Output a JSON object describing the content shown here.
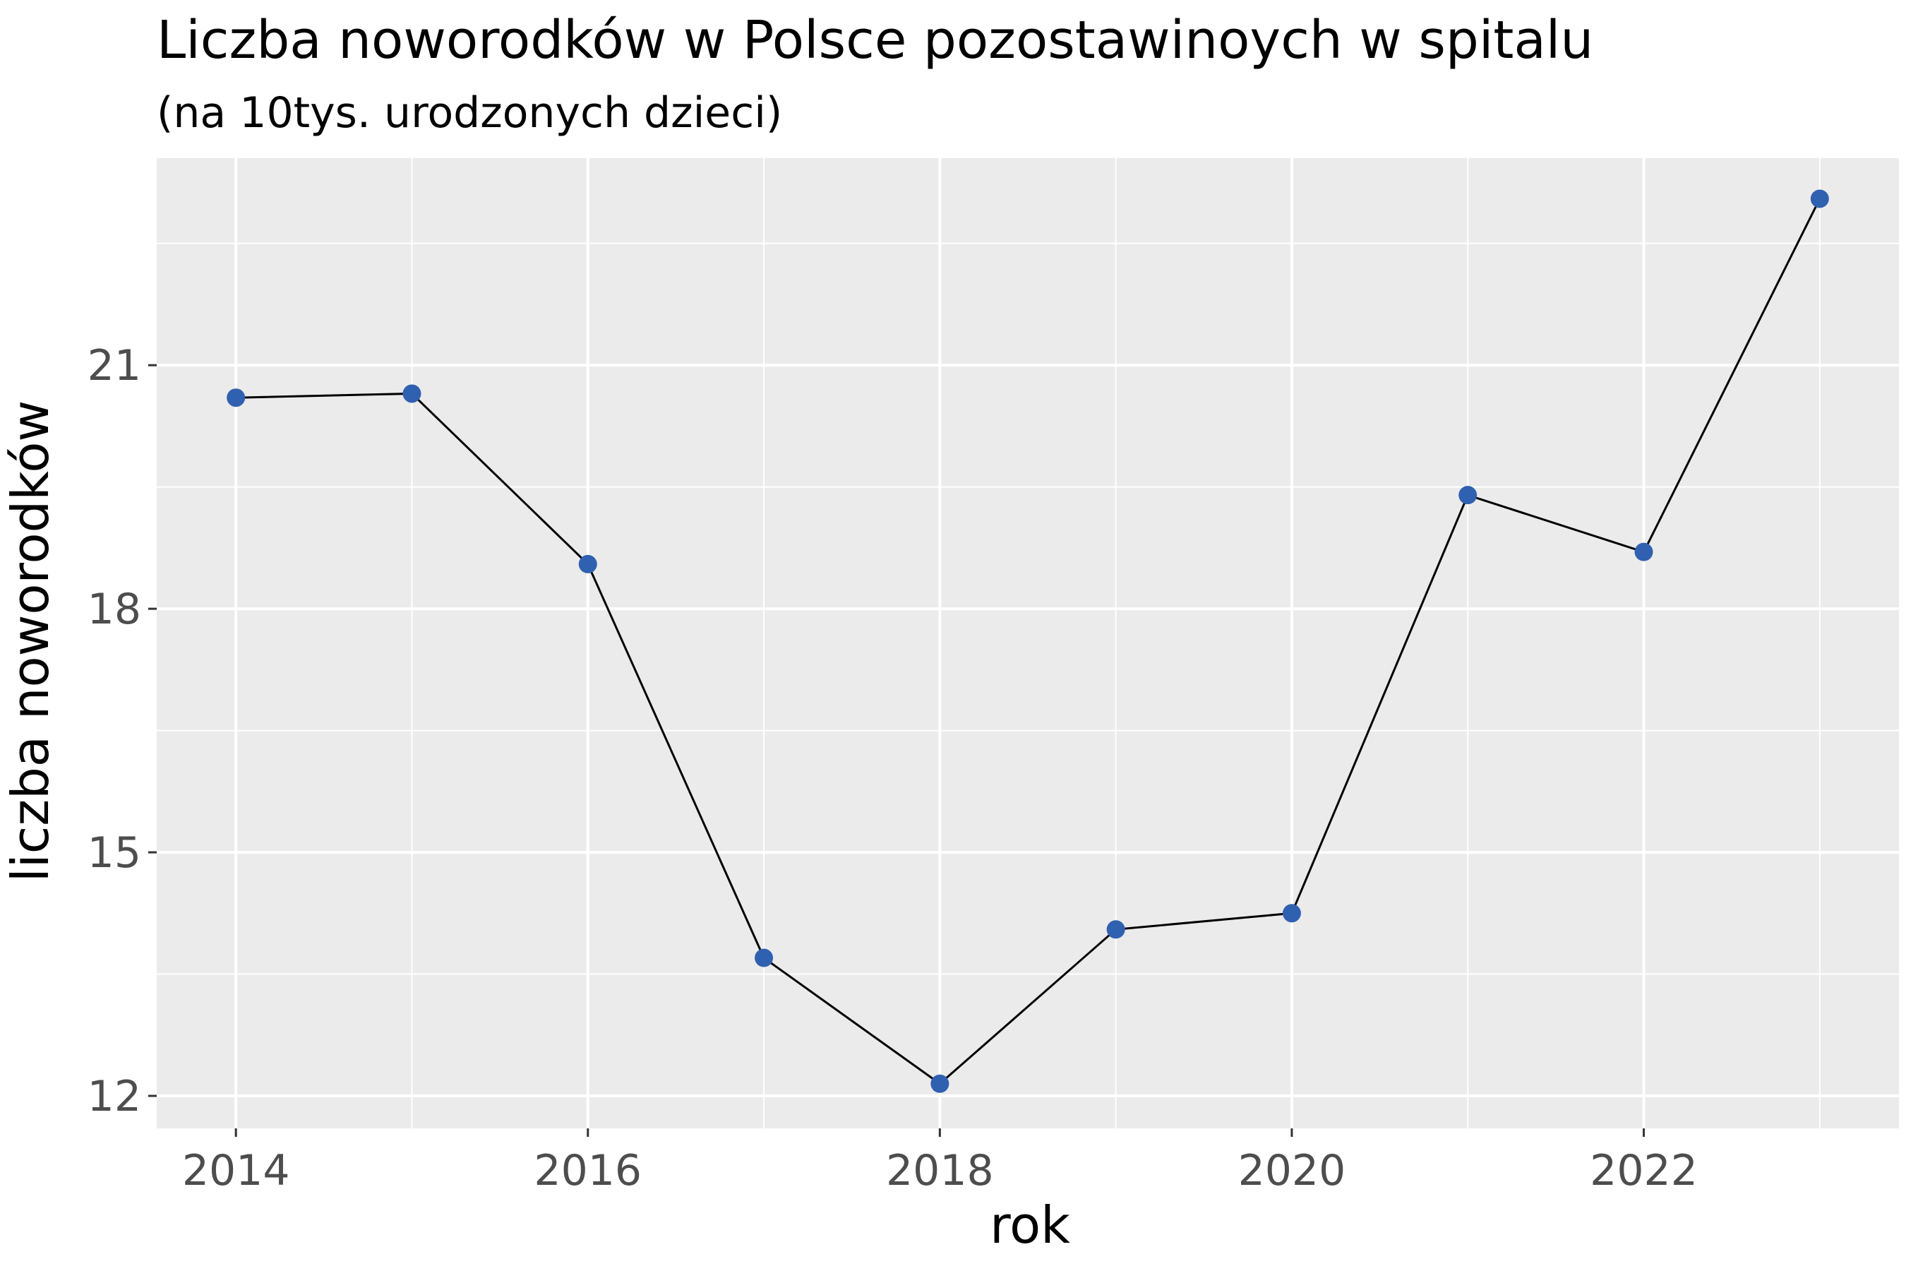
{
  "chart_data": {
    "type": "line",
    "title": "Liczba noworodków w Polsce pozostawinoych w spitalu",
    "subtitle": "(na 10tys. urodzonych dzieci)",
    "xlabel": "rok",
    "ylabel": "liczba noworodków",
    "x": [
      2014,
      2015,
      2016,
      2017,
      2018,
      2019,
      2020,
      2021,
      2022,
      2023
    ],
    "series": [
      {
        "values": [
          20.6,
          20.65,
          18.55,
          13.7,
          12.15,
          14.05,
          14.25,
          19.4,
          18.7,
          23.05
        ]
      }
    ],
    "xlim": [
      2013.55,
      2023.45
    ],
    "ylim": [
      11.6,
      23.55
    ],
    "x_ticks": [
      2014,
      2016,
      2018,
      2020,
      2022
    ],
    "x_tick_labels": [
      "2014",
      "2016",
      "2018",
      "2020",
      "2022"
    ],
    "x_minor_ticks": [
      2015,
      2017,
      2019,
      2021,
      2023
    ],
    "y_ticks": [
      12,
      15,
      18,
      21
    ],
    "y_tick_labels": [
      "12",
      "15",
      "18",
      "21"
    ],
    "y_minor_ticks": [
      13.5,
      16.5,
      19.5,
      22.5
    ],
    "grid": true,
    "legend": "none",
    "colors": {
      "panel": "#ebebeb",
      "grid": "#ffffff",
      "line": "#000000",
      "point": "#3060b0",
      "tick_label": "#4d4d4d"
    }
  }
}
